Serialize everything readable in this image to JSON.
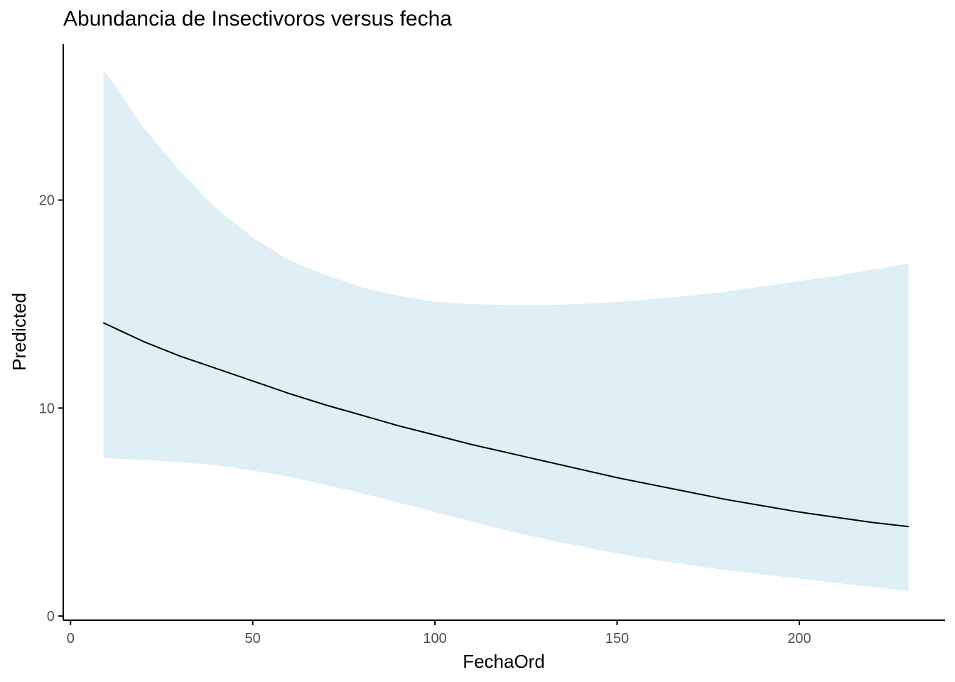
{
  "chart_data": {
    "type": "line",
    "title": "Abundancia de Insectivoros versus fecha",
    "xlabel": "FechaOrd",
    "ylabel": "Predicted",
    "xlim": [
      -2,
      240
    ],
    "ylim": [
      -0.2,
      27.5
    ],
    "x_ticks": [
      0,
      50,
      100,
      150,
      200
    ],
    "y_ticks": [
      0,
      10,
      20
    ],
    "grid": false,
    "legend": "none",
    "colors": {
      "line": "#000000",
      "ribbon": "#add8e6",
      "axis": "#000000",
      "tick_text": "#4d4d4d"
    },
    "series": [
      {
        "x": [
          9,
          20,
          30,
          40,
          50,
          60,
          70,
          80,
          90,
          100,
          110,
          120,
          130,
          140,
          150,
          160,
          170,
          180,
          190,
          200,
          210,
          220,
          230
        ],
        "y": [
          14.1,
          13.2,
          12.5,
          11.9,
          11.3,
          10.7,
          10.15,
          9.65,
          9.15,
          8.7,
          8.25,
          7.85,
          7.45,
          7.05,
          6.65,
          6.3,
          5.95,
          5.6,
          5.3,
          5.0,
          4.75,
          4.5,
          4.3
        ],
        "lower": [
          7.6,
          7.5,
          7.4,
          7.25,
          7.0,
          6.7,
          6.3,
          5.9,
          5.45,
          5.0,
          4.55,
          4.1,
          3.7,
          3.35,
          3.0,
          2.7,
          2.45,
          2.2,
          2.0,
          1.8,
          1.6,
          1.4,
          1.2
        ],
        "upper": [
          26.3,
          23.5,
          21.4,
          19.6,
          18.2,
          17.1,
          16.4,
          15.8,
          15.4,
          15.1,
          15.0,
          14.95,
          14.95,
          15.0,
          15.1,
          15.25,
          15.4,
          15.6,
          15.85,
          16.1,
          16.35,
          16.65,
          16.95
        ]
      }
    ]
  }
}
